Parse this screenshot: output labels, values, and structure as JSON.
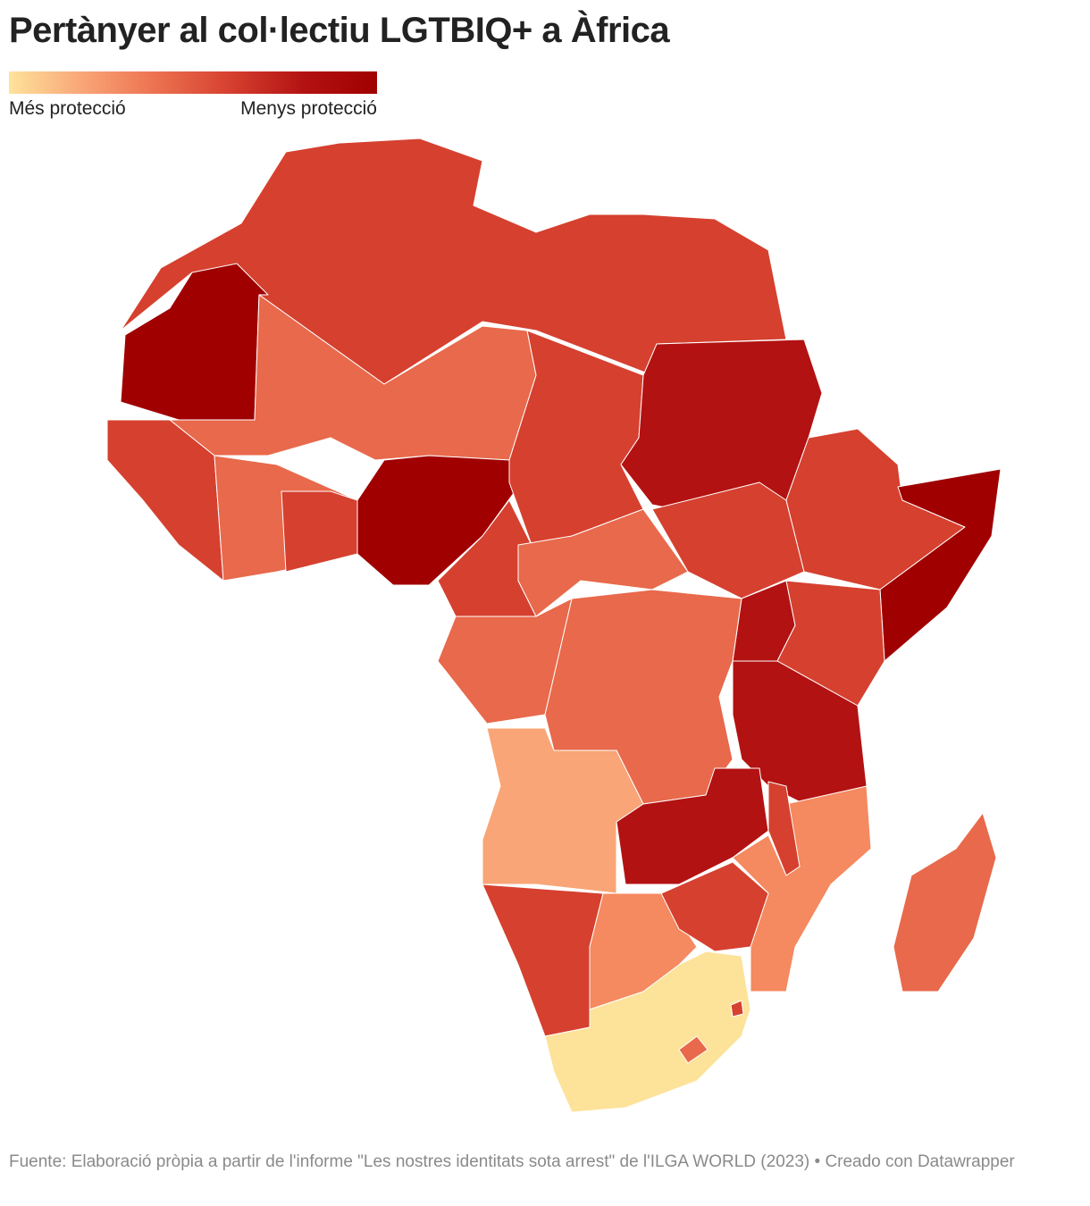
{
  "header": {
    "title": "Pertànyer al col·lectiu LGTBIQ+ a Àfrica"
  },
  "legend": {
    "low_label": "Més protecció",
    "high_label": "Menys protecció"
  },
  "footer": {
    "source": "Fuente: Elaboració pròpia a partir de l'informe \"Les nostres identitats sota arrest\" de l'ILGA WORLD (2023) • Creado con Datawrapper"
  }
}
